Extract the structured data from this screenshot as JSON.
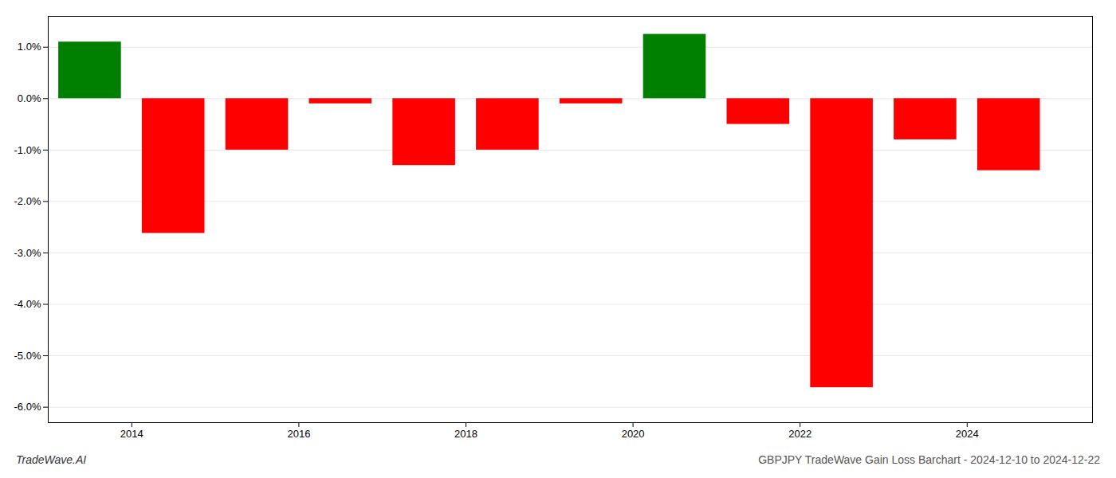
{
  "chart_data": {
    "type": "bar",
    "x": [
      2013.5,
      2014.5,
      2015.5,
      2016.5,
      2017.5,
      2018.5,
      2019.5,
      2020.5,
      2021.5,
      2022.5,
      2023.5,
      2024.5
    ],
    "values": [
      1.1,
      -2.62,
      -1.0,
      -0.1,
      -1.3,
      -1.0,
      -0.1,
      1.25,
      -0.5,
      -5.62,
      -0.8,
      -1.4
    ],
    "colors": [
      "#008000",
      "#ff0000",
      "#ff0000",
      "#ff0000",
      "#ff0000",
      "#ff0000",
      "#ff0000",
      "#008000",
      "#ff0000",
      "#ff0000",
      "#ff0000",
      "#ff0000"
    ],
    "xlim": [
      2013.0,
      2025.5
    ],
    "xticks": [
      2014,
      2016,
      2018,
      2020,
      2022,
      2024
    ],
    "ylim": [
      -6.3,
      1.6
    ],
    "yticks": [
      {
        "value": 1.0,
        "label": "1.0%"
      },
      {
        "value": 0.0,
        "label": "0.0%"
      },
      {
        "value": -1.0,
        "label": "-1.0%"
      },
      {
        "value": -2.0,
        "label": "-2.0%"
      },
      {
        "value": -3.0,
        "label": "-3.0%"
      },
      {
        "value": -4.0,
        "label": "-4.0%"
      },
      {
        "value": -5.0,
        "label": "-5.0%"
      },
      {
        "value": -6.0,
        "label": "-6.0%"
      }
    ],
    "grid": true,
    "annotations": [
      "TradeWave.AI",
      "GBPJPY TradeWave Gain Loss Barchart - 2024-12-10 to 2024-12-22"
    ]
  }
}
